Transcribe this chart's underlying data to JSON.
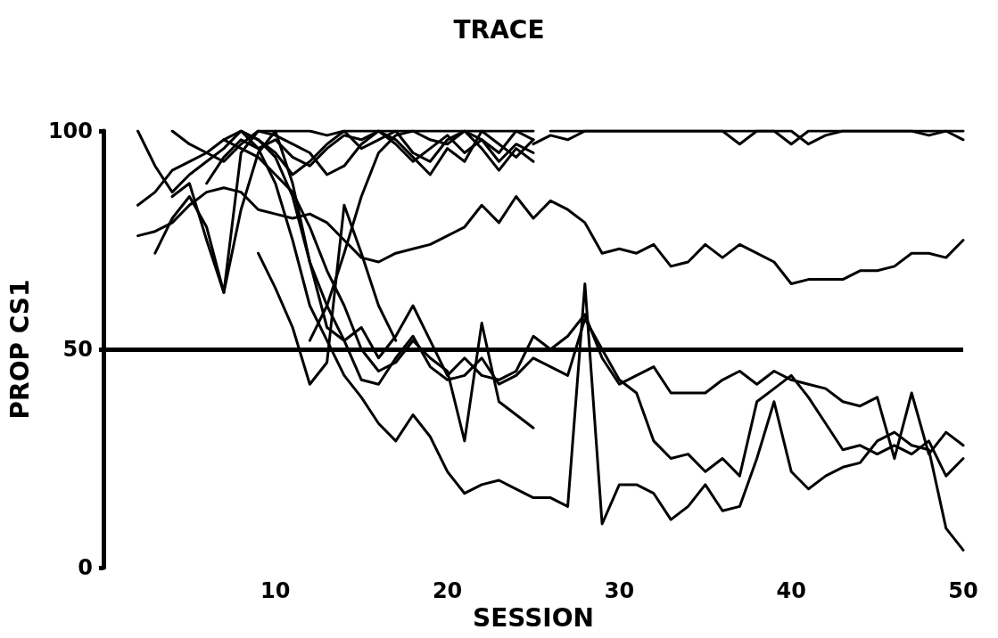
{
  "chart_data": {
    "type": "line",
    "title": "TRACE",
    "xlabel": "SESSION",
    "ylabel": "PROP CS1",
    "xlim": [
      0,
      50
    ],
    "xticks": [
      10,
      20,
      30,
      40,
      50
    ],
    "ylim": [
      0,
      100
    ],
    "yticks": [
      0,
      50,
      100
    ],
    "grid": false,
    "marker": "none",
    "line_style": "solid",
    "ref_lines": [
      {
        "axis": "y",
        "value": 50,
        "color": "#000000"
      }
    ],
    "series": [
      {
        "color": "#000000",
        "x": [
          4,
          5,
          6,
          7,
          8,
          9,
          10,
          11,
          12,
          13,
          14,
          15,
          16,
          17,
          18,
          19,
          20,
          21,
          22,
          23,
          24,
          25
        ],
        "values": [
          100,
          97,
          95,
          93,
          97,
          100,
          100,
          100,
          100,
          99,
          100,
          100,
          100,
          100,
          100,
          100,
          100,
          100,
          100,
          100,
          100,
          100
        ]
      },
      {
        "color": "#000000",
        "x": [
          2,
          3,
          4,
          5,
          6,
          7,
          8,
          9,
          10,
          11,
          12,
          13,
          14,
          15,
          16,
          17,
          18,
          19,
          20,
          21,
          22,
          23,
          24,
          25
        ],
        "values": [
          83,
          86,
          91,
          93,
          95,
          98,
          100,
          96,
          98,
          94,
          92,
          96,
          99,
          98,
          100,
          97,
          93,
          96,
          99,
          95,
          98,
          93,
          97,
          95
        ]
      },
      {
        "color": "#000000",
        "x": [
          2,
          3,
          4,
          5,
          6,
          7,
          8,
          9,
          10,
          11,
          12,
          13,
          14,
          15,
          16,
          17,
          18,
          19,
          20,
          21,
          22,
          23,
          24,
          25
        ],
        "values": [
          100,
          92,
          86,
          90,
          93,
          96,
          100,
          98,
          95,
          90,
          93,
          97,
          100,
          96,
          98,
          100,
          95,
          93,
          98,
          100,
          96,
          91,
          96,
          93
        ]
      },
      {
        "color": "#000000",
        "x": [
          3,
          4,
          5,
          6,
          7,
          8,
          9,
          10,
          11,
          12,
          13,
          14,
          15,
          16,
          17,
          18,
          19,
          20,
          21,
          22,
          23,
          24,
          25
        ],
        "values": [
          72,
          80,
          85,
          78,
          63,
          95,
          100,
          99,
          97,
          95,
          90,
          92,
          97,
          100,
          98,
          94,
          90,
          96,
          93,
          100,
          97,
          94,
          98
        ]
      },
      {
        "color": "#000000",
        "x": [
          2,
          3,
          4,
          5,
          6,
          7,
          8,
          9,
          10,
          11,
          12,
          13,
          14,
          15,
          16,
          17,
          18,
          19,
          20,
          21,
          22,
          23,
          24,
          25,
          26,
          27,
          28,
          29,
          30,
          31,
          32,
          33,
          34,
          35,
          36,
          37,
          38,
          39,
          40,
          41,
          42,
          43,
          44,
          45,
          46,
          47,
          48,
          49,
          50
        ],
        "values": [
          76,
          77,
          79,
          83,
          86,
          87,
          86,
          82,
          81,
          80,
          81,
          79,
          75,
          71,
          70,
          72,
          73,
          74,
          76,
          78,
          83,
          79,
          85,
          80,
          84,
          82,
          79,
          72,
          73,
          72,
          74,
          69,
          70,
          74,
          71,
          74,
          72,
          70,
          65,
          66,
          66,
          66,
          68,
          68,
          69,
          72,
          72,
          71,
          75
        ]
      },
      {
        "color": "#000000",
        "x": [
          26,
          27,
          28,
          29,
          30,
          31,
          32,
          33,
          34,
          35,
          36,
          37,
          38,
          39,
          40,
          41,
          42,
          43,
          44,
          45,
          46,
          47,
          48,
          49,
          50
        ],
        "values": [
          100,
          100,
          100,
          100,
          100,
          100,
          100,
          100,
          100,
          100,
          100,
          97,
          100,
          100,
          97,
          100,
          100,
          100,
          100,
          100,
          100,
          100,
          100,
          100,
          100
        ]
      },
      {
        "color": "#000000",
        "x": [
          25,
          26,
          27,
          28,
          29,
          30,
          31,
          32,
          33,
          34,
          35,
          36,
          37,
          38,
          39,
          40,
          41,
          42,
          43,
          44,
          45,
          46,
          47,
          48,
          49,
          50
        ],
        "values": [
          97,
          99,
          98,
          100,
          100,
          100,
          100,
          100,
          100,
          100,
          100,
          100,
          100,
          100,
          100,
          100,
          97,
          99,
          100,
          100,
          100,
          100,
          100,
          99,
          100,
          98
        ]
      },
      {
        "color": "#000000",
        "x": [
          6,
          7,
          8,
          9,
          10,
          11,
          12,
          13,
          14,
          15,
          16,
          17,
          18,
          19,
          20,
          21,
          22,
          23,
          24,
          25,
          26,
          27,
          28,
          29,
          30,
          31,
          32,
          33,
          34,
          35,
          36,
          37,
          38,
          39,
          40,
          41,
          42,
          43,
          44,
          45,
          46,
          47,
          48,
          49,
          50
        ],
        "values": [
          88,
          94,
          98,
          96,
          88,
          75,
          60,
          52,
          44,
          39,
          33,
          29,
          35,
          30,
          22,
          17,
          19,
          20,
          18,
          16,
          16,
          14,
          65,
          10,
          19,
          19,
          17,
          11,
          14,
          19,
          13,
          14,
          25,
          38,
          22,
          18,
          21,
          23,
          24,
          29,
          31,
          28,
          27,
          9,
          4
        ]
      },
      {
        "color": "#000000",
        "x": [
          4,
          5,
          6,
          7,
          8,
          9,
          10,
          11,
          12,
          13,
          14,
          15,
          16,
          17,
          18,
          19,
          20,
          21,
          22,
          23,
          24,
          25,
          26,
          27,
          28,
          29,
          30,
          31,
          32,
          33,
          34,
          35,
          36,
          37,
          38,
          39,
          40,
          41,
          42,
          43,
          44,
          45,
          46,
          47,
          48,
          49,
          50
        ],
        "values": [
          85,
          88,
          75,
          63,
          82,
          95,
          100,
          88,
          70,
          55,
          52,
          43,
          42,
          48,
          53,
          46,
          43,
          44,
          48,
          42,
          44,
          48,
          46,
          44,
          57,
          50,
          43,
          40,
          29,
          25,
          26,
          22,
          25,
          21,
          38,
          41,
          44,
          39,
          33,
          27,
          28,
          26,
          28,
          26,
          29,
          21,
          25
        ]
      },
      {
        "color": "#000000",
        "x": [
          8,
          9,
          10,
          11,
          12,
          13,
          14,
          15,
          16,
          17,
          18,
          19,
          20,
          21,
          22,
          23,
          24,
          25,
          26,
          27,
          28,
          29,
          30,
          31,
          32,
          33,
          34,
          35,
          36,
          37,
          38,
          39,
          40,
          41,
          42,
          43,
          44,
          45,
          46,
          47,
          48,
          49,
          50
        ],
        "values": [
          100,
          98,
          94,
          85,
          70,
          60,
          52,
          55,
          48,
          53,
          60,
          52,
          44,
          48,
          44,
          43,
          45,
          53,
          50,
          53,
          58,
          48,
          42,
          44,
          46,
          40,
          40,
          40,
          43,
          45,
          42,
          45,
          43,
          42,
          41,
          38,
          37,
          39,
          25,
          40,
          26,
          31,
          28
        ]
      },
      {
        "color": "#000000",
        "x": [
          7,
          8,
          9,
          10,
          11,
          12,
          13,
          14,
          15,
          16,
          17,
          18,
          19,
          20,
          21,
          22,
          23,
          24,
          25
        ],
        "values": [
          98,
          96,
          94,
          90,
          86,
          78,
          68,
          60,
          50,
          45,
          47,
          52,
          48,
          45,
          29,
          56,
          38,
          35,
          32
        ]
      },
      {
        "color": "#000000",
        "x": [
          9,
          10,
          11,
          12,
          13,
          14,
          15,
          16,
          17
        ],
        "values": [
          72,
          64,
          55,
          42,
          47,
          83,
          72,
          60,
          52
        ]
      },
      {
        "color": "#000000",
        "x": [
          12,
          13,
          14,
          15,
          16,
          17,
          18,
          19,
          20,
          21,
          22,
          23,
          24,
          25
        ],
        "values": [
          52,
          60,
          72,
          85,
          95,
          99,
          100,
          98,
          97,
          100,
          98,
          95,
          100,
          98
        ]
      }
    ]
  }
}
